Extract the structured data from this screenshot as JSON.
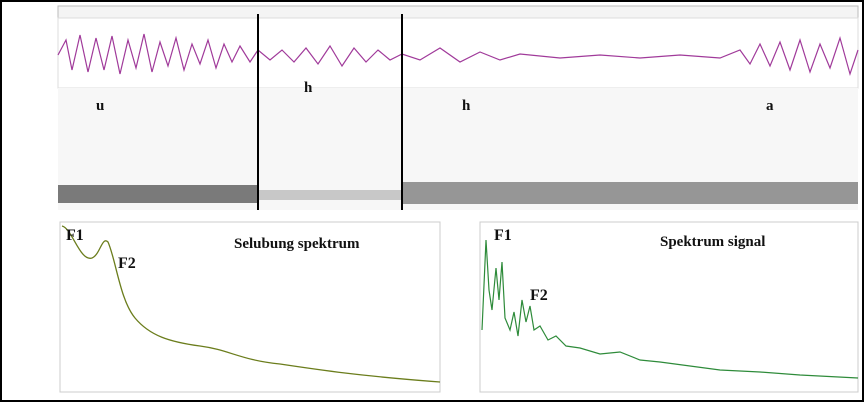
{
  "waveform_panel": {
    "segments": [
      "u",
      "h",
      "h",
      "a"
    ]
  },
  "envelope_panel": {
    "title": "Selubung spektrum",
    "peaks": [
      "F1",
      "F2"
    ]
  },
  "signal_panel": {
    "title": "Spektrum signal",
    "peaks": [
      "F1",
      "F2"
    ]
  }
}
